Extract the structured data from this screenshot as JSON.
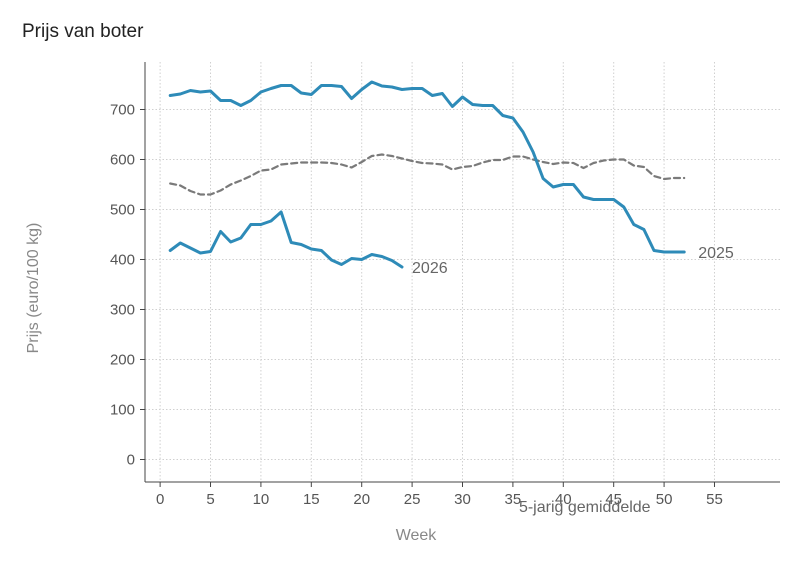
{
  "chart_data": {
    "type": "line",
    "title": "Prijs van boter",
    "xlabel": "Week",
    "ylabel": "Prijs (euro/100 kg)",
    "xlim": [
      -1.5,
      61.5
    ],
    "ylim": [
      -45,
      795
    ],
    "xticks": [
      0,
      5,
      10,
      15,
      20,
      25,
      30,
      35,
      40,
      45,
      50,
      55
    ],
    "yticks": [
      0,
      100,
      200,
      300,
      400,
      500,
      600,
      700
    ],
    "grid": true,
    "colors": {
      "primary": "#2e8bb8",
      "average": "#7a7a7a",
      "grid": "#d0d0d0"
    },
    "series": [
      {
        "name": "2025",
        "color": "#2e8bb8",
        "style": "solid",
        "x": [
          1,
          2,
          3,
          4,
          5,
          6,
          7,
          8,
          9,
          10,
          11,
          12,
          13,
          14,
          15,
          16,
          17,
          18,
          19,
          20,
          21,
          22,
          23,
          24,
          25,
          26,
          27,
          28,
          29,
          30,
          31,
          32,
          33,
          34,
          35,
          36,
          37,
          38,
          39,
          40,
          41,
          42,
          43,
          44,
          45,
          46,
          47,
          48,
          49,
          50,
          51,
          52
        ],
        "values": [
          728,
          731,
          738,
          735,
          737,
          718,
          718,
          708,
          718,
          735,
          742,
          748,
          748,
          733,
          730,
          748,
          748,
          746,
          722,
          740,
          755,
          747,
          745,
          740,
          742,
          742,
          728,
          732,
          706,
          725,
          710,
          708,
          708,
          688,
          683,
          655,
          615,
          562,
          545,
          550,
          550,
          525,
          520,
          520,
          520,
          505,
          470,
          460,
          418,
          415,
          415,
          415
        ]
      },
      {
        "name": "5-jarig gemiddelde",
        "color": "#7a7a7a",
        "style": "dashed",
        "x": [
          1,
          2,
          3,
          4,
          5,
          6,
          7,
          8,
          9,
          10,
          11,
          12,
          13,
          14,
          15,
          16,
          17,
          18,
          19,
          20,
          21,
          22,
          23,
          24,
          25,
          26,
          27,
          28,
          29,
          30,
          31,
          32,
          33,
          34,
          35,
          36,
          37,
          38,
          39,
          40,
          41,
          42,
          43,
          44,
          45,
          46,
          47,
          48,
          49,
          50,
          51,
          52
        ],
        "values": [
          552,
          548,
          537,
          530,
          530,
          538,
          550,
          558,
          567,
          578,
          580,
          590,
          592,
          594,
          594,
          594,
          593,
          590,
          584,
          595,
          607,
          610,
          607,
          602,
          597,
          593,
          592,
          590,
          580,
          585,
          587,
          594,
          599,
          599,
          606,
          606,
          600,
          595,
          591,
          594,
          593,
          583,
          593,
          598,
          600,
          600,
          588,
          585,
          567,
          561,
          563,
          563
        ]
      },
      {
        "name": "2026",
        "color": "#2e8bb8",
        "style": "solid",
        "x": [
          1,
          2,
          3,
          4,
          5,
          6,
          7,
          8,
          9,
          10,
          11,
          12,
          13,
          14,
          15,
          16,
          17,
          18,
          19,
          20,
          21,
          22,
          23,
          24
        ],
        "values": [
          418,
          433,
          423,
          413,
          416,
          456,
          435,
          443,
          470,
          470,
          477,
          495,
          434,
          430,
          421,
          418,
          399,
          390,
          402,
          400,
          410,
          406,
          398,
          385
        ]
      }
    ]
  }
}
